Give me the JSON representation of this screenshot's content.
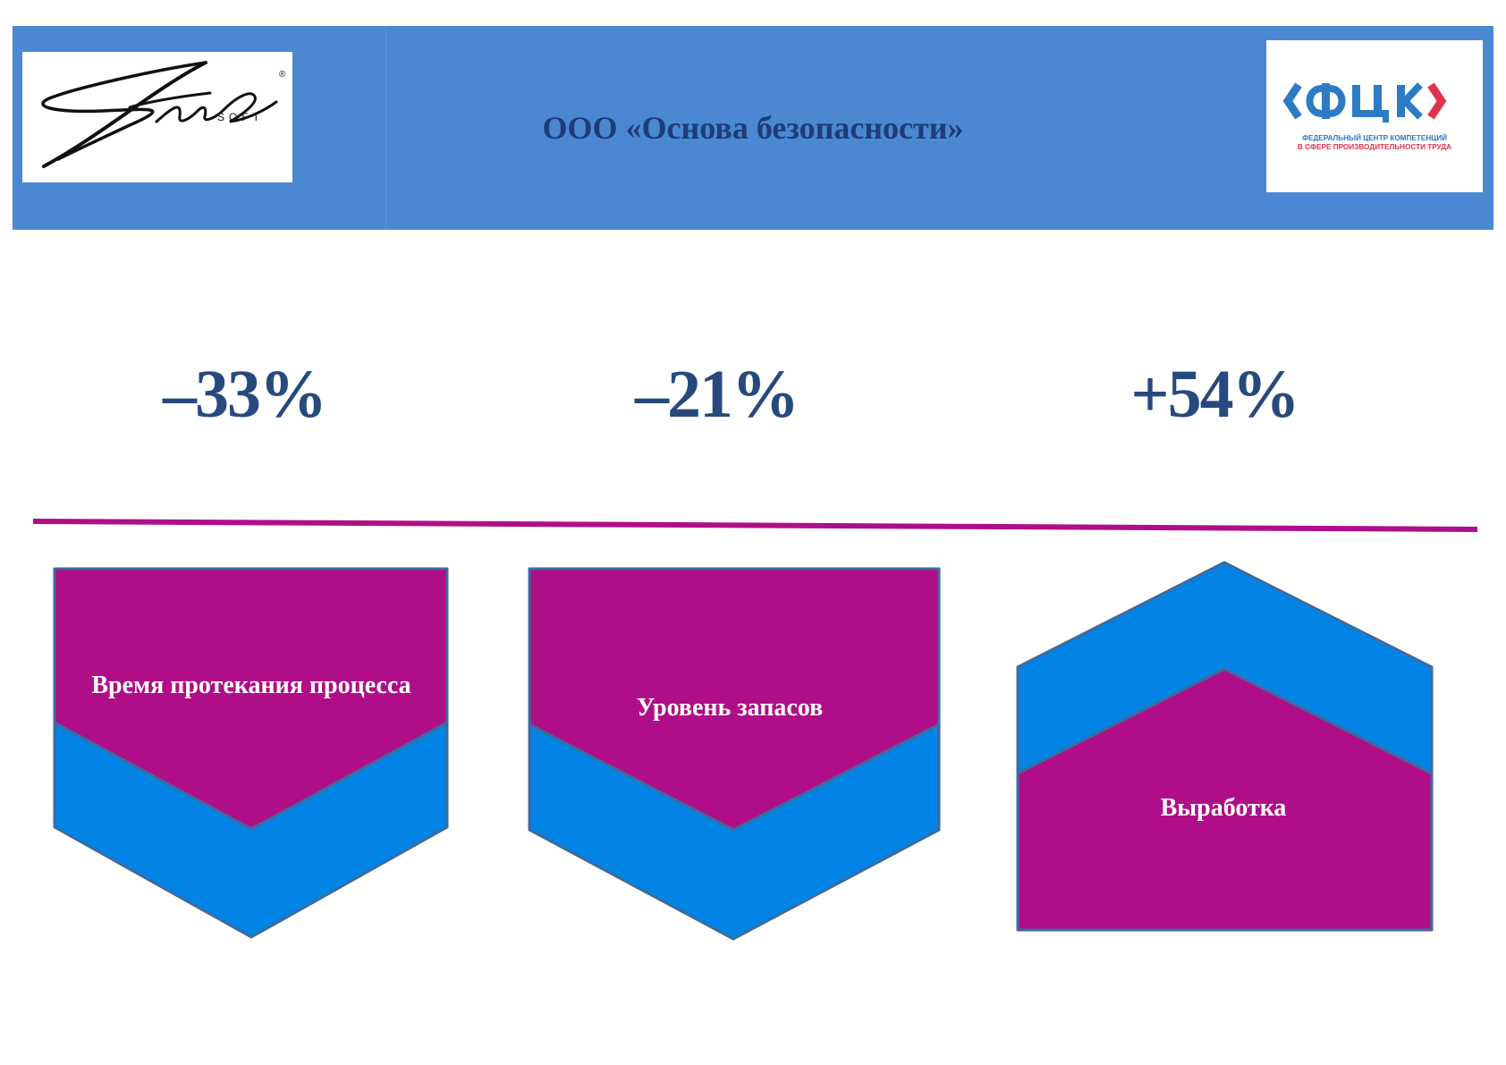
{
  "header": {
    "title": "ООО «Основа безопасности»",
    "left_logo": {
      "icon": "stil-soft-logo",
      "wordmark": "Stil",
      "sub": "SOFT",
      "mark": "®"
    },
    "right_logo": {
      "icon": "fck-logo",
      "wordmark": "ФЦК",
      "line1": "ФЕДЕРАЛЬНЫЙ ЦЕНТР КОМПЕТЕНЦИЙ",
      "line2": "В СФЕРЕ ПРОИЗВОДИТЕЛЬНОСТИ ТРУДА"
    }
  },
  "metrics": [
    {
      "value": "–33%",
      "label": "Время протекания процесса",
      "direction": "down"
    },
    {
      "value": "–21%",
      "label": "Уровень запасов",
      "direction": "down"
    },
    {
      "value": "+54%",
      "label": "Выработка",
      "direction": "up"
    }
  ],
  "colors": {
    "header_blue": "#4a88d2",
    "title_navy": "#1f3c78",
    "metric_navy": "#274a7e",
    "magenta": "#b00e88",
    "bright_blue": "#0284e6",
    "shape_outline": "#3e6a9e",
    "fck_blue": "#2c7bc4",
    "fck_red": "#e0334f"
  }
}
